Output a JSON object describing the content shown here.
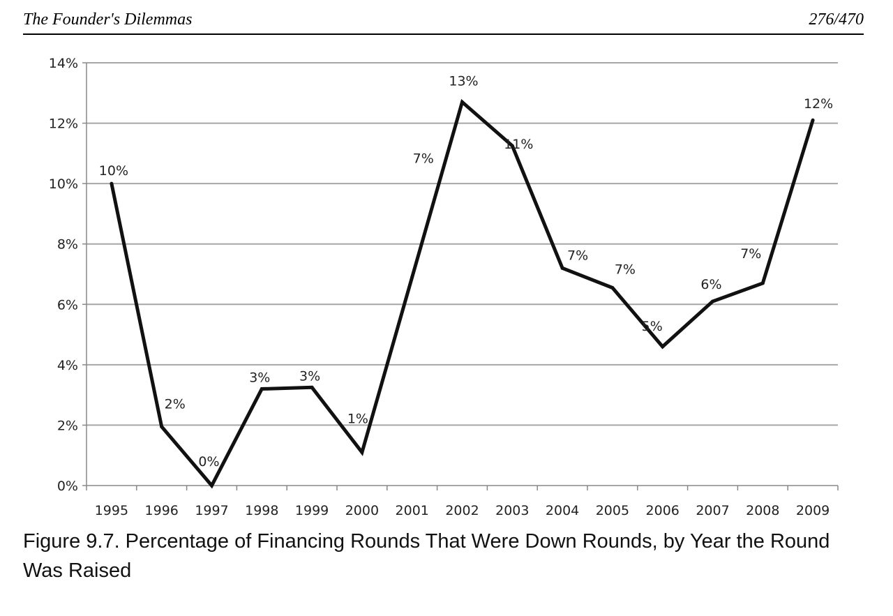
{
  "header": {
    "book_title": "The Founder's Dilemmas",
    "page_counter": "276/470"
  },
  "caption": "Figure 9.7. Percentage of Financing Rounds That Were Down Rounds, by Year the Round Was Raised",
  "chart_data": {
    "type": "line",
    "title": "",
    "xlabel": "",
    "ylabel": "",
    "categories": [
      "1995",
      "1996",
      "1997",
      "1998",
      "1999",
      "2000",
      "2001",
      "2002",
      "2003",
      "2004",
      "2005",
      "2006",
      "2007",
      "2008",
      "2009"
    ],
    "series": [
      {
        "values": [
          10.0,
          1.95,
          0.0,
          3.2,
          3.25,
          1.1,
          6.9,
          12.7,
          11.25,
          7.2,
          6.55,
          4.6,
          6.1,
          6.7,
          12.1
        ],
        "data_labels": [
          "10%",
          "2%",
          "0%",
          "3%",
          "3%",
          "1%",
          "7%",
          "13%",
          "11%",
          "7%",
          "7%",
          "5%",
          "6%",
          "7%",
          "12%"
        ]
      }
    ],
    "ylim": [
      0,
      14
    ],
    "yticks": [
      0,
      2,
      4,
      6,
      8,
      10,
      12,
      14
    ],
    "ytick_labels": [
      "0%",
      "2%",
      "4%",
      "6%",
      "8%",
      "10%",
      "12%",
      "14%"
    ],
    "grid": true,
    "legend": "none",
    "line_color": "#111111",
    "grid_color": "#a6a6a6"
  }
}
